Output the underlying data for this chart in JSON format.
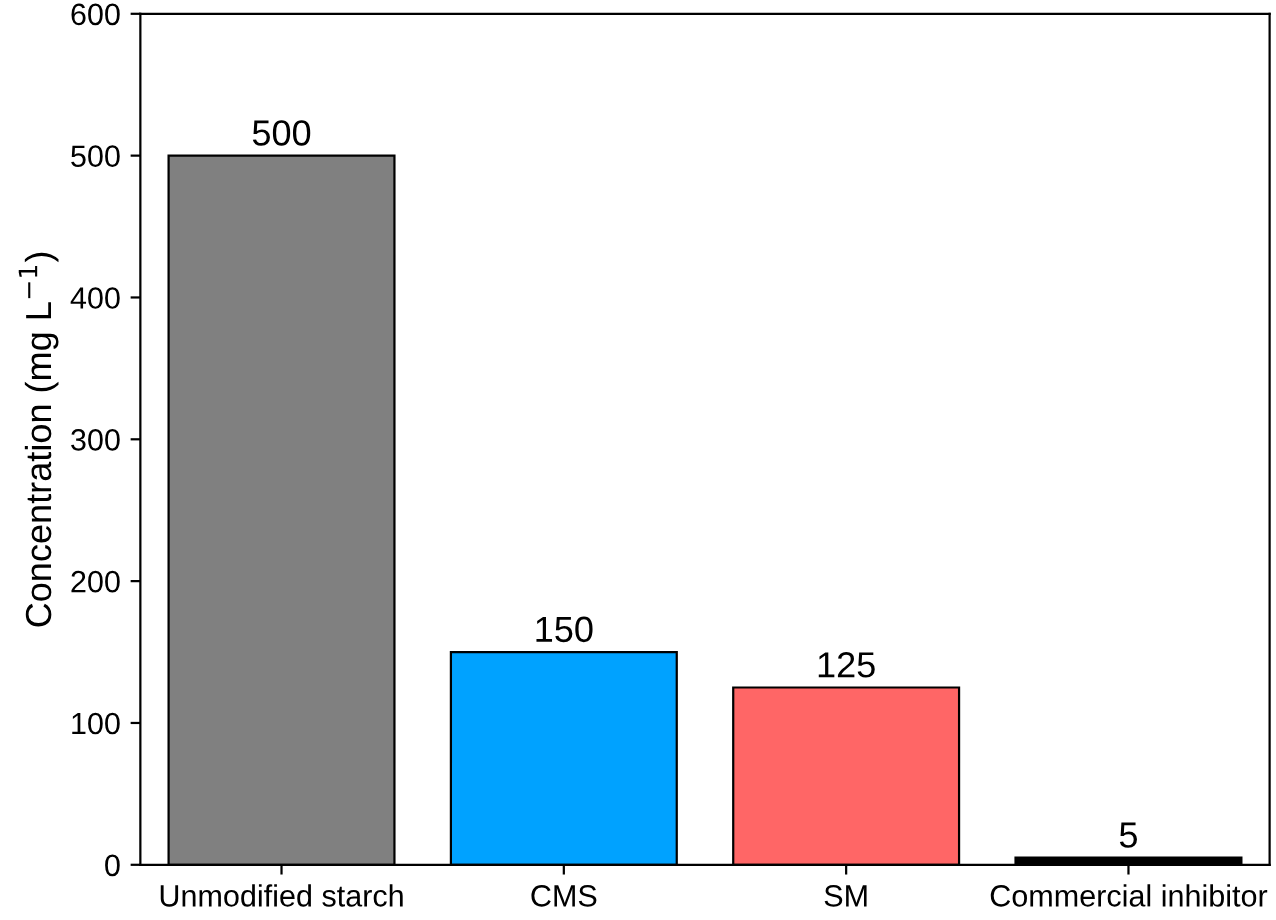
{
  "chart_data": {
    "type": "bar",
    "ylabel": "Concentration (mg L$^{−1}$)",
    "categories": [
      "Unmodified starch",
      "CMS",
      "SM",
      "Commercial inhibitor"
    ],
    "values": [
      500,
      150,
      125,
      5
    ],
    "colors": [
      "#808080",
      "#00a2ff",
      "#ff6666",
      "#000000"
    ],
    "ylim": [
      0,
      600
    ],
    "yticks": [
      0,
      100,
      200,
      300,
      400,
      500,
      600
    ],
    "data_labels": true,
    "grid": false,
    "legend": false
  }
}
